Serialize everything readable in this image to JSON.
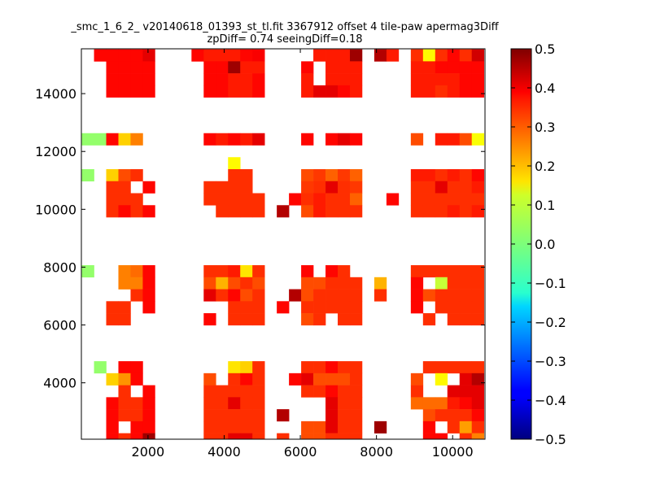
{
  "chart_data": {
    "type": "heatmap",
    "title": "_smc_1_6_2_ v20140618_01393_st_tl.fit 3367912 offset 4 tile-paw apermag3Diff",
    "subtitle": "zpDiff= 0.74 seeingDiff=0.18",
    "xlabel": "",
    "ylabel": "",
    "xlim": [
      250,
      10850
    ],
    "ylim": [
      2050,
      15550
    ],
    "xticks": [
      2000,
      4000,
      6000,
      8000,
      10000
    ],
    "yticks": [
      4000,
      6000,
      8000,
      10000,
      12000,
      14000
    ],
    "colorbar": {
      "colormap": "jet",
      "range": [
        -0.5,
        0.5
      ],
      "ticks": [
        "0.5",
        "0.4",
        "0.3",
        "0.2",
        "0.1",
        "0.0",
        "−0.1",
        "−0.2",
        "−0.3",
        "−0.4",
        "−0.5"
      ]
    },
    "bin_size": {
      "x": 320,
      "y": 415
    },
    "grid": false,
    "columns_x": [
      422,
      742,
      1062,
      1382,
      1702,
      2022,
      3302,
      3622,
      3942,
      4262,
      4582,
      4902,
      5542,
      5862,
      6182,
      6502,
      6822,
      7142,
      7462,
      8102,
      8422,
      9062,
      9382,
      9702,
      10022,
      10342,
      10662
    ],
    "rows_y": [
      15325,
      14910,
      14495,
      14080,
      12425,
      11595,
      11180,
      10765,
      10350,
      9935,
      7860,
      7445,
      7030,
      6615,
      6200,
      4540,
      4125,
      3710,
      3295,
      2880,
      2465,
      2050
    ],
    "cells": [
      [
        null,
        0.37,
        0.37,
        0.37,
        0.37,
        0.4,
        0.37,
        0.35,
        0.35,
        0.35,
        0.37,
        0.38,
        null,
        null,
        null,
        0.35,
        0.35,
        0.35,
        0.47,
        0.45,
        0.35,
        0.33,
        0.13,
        0.33,
        0.37,
        0.33,
        0.42
      ],
      [
        null,
        null,
        0.37,
        0.37,
        0.37,
        0.37,
        null,
        0.37,
        0.37,
        0.47,
        0.35,
        0.35,
        null,
        null,
        0.37,
        null,
        0.35,
        0.35,
        0.35,
        null,
        null,
        0.35,
        0.35,
        0.37,
        0.37,
        0.37,
        0.37
      ],
      [
        null,
        null,
        0.37,
        0.37,
        0.37,
        0.37,
        null,
        0.37,
        0.37,
        0.35,
        0.35,
        0.37,
        null,
        null,
        0.35,
        null,
        0.35,
        0.35,
        0.35,
        null,
        null,
        0.35,
        0.35,
        0.35,
        0.35,
        0.37,
        0.37
      ],
      [
        null,
        null,
        0.37,
        0.37,
        0.37,
        0.37,
        null,
        0.37,
        0.37,
        0.35,
        0.35,
        0.37,
        null,
        null,
        0.35,
        0.4,
        0.4,
        0.37,
        0.35,
        null,
        null,
        0.35,
        0.35,
        0.33,
        0.35,
        0.37,
        0.37
      ],
      [
        0.02,
        0.02,
        0.37,
        0.17,
        0.25,
        null,
        null,
        0.37,
        0.35,
        0.37,
        0.35,
        0.4,
        null,
        null,
        0.37,
        null,
        0.37,
        0.4,
        0.37,
        null,
        null,
        0.3,
        null,
        0.35,
        0.35,
        0.3,
        0.12
      ],
      [
        null,
        null,
        null,
        null,
        null,
        null,
        null,
        null,
        null,
        0.13,
        null,
        null,
        null,
        null,
        null,
        null,
        null,
        null,
        null,
        null,
        null,
        null,
        null,
        null,
        null,
        null,
        null
      ],
      [
        0.02,
        null,
        0.17,
        0.3,
        0.33,
        null,
        null,
        null,
        null,
        0.33,
        0.33,
        null,
        null,
        null,
        0.3,
        0.32,
        0.28,
        0.32,
        0.28,
        null,
        null,
        0.35,
        0.35,
        0.33,
        0.35,
        0.33,
        0.37
      ],
      [
        null,
        null,
        0.33,
        0.33,
        null,
        0.37,
        null,
        0.33,
        0.33,
        0.33,
        0.33,
        null,
        null,
        null,
        0.32,
        0.33,
        0.4,
        0.33,
        0.32,
        null,
        null,
        0.33,
        0.33,
        0.4,
        0.33,
        0.33,
        0.35
      ],
      [
        null,
        null,
        0.33,
        0.33,
        0.33,
        null,
        null,
        0.33,
        0.33,
        0.33,
        0.33,
        0.33,
        null,
        0.37,
        0.33,
        0.35,
        0.33,
        0.33,
        0.28,
        null,
        0.37,
        0.33,
        0.33,
        0.33,
        0.33,
        0.33,
        0.33
      ],
      [
        null,
        null,
        0.33,
        0.37,
        0.33,
        0.37,
        null,
        null,
        0.33,
        0.33,
        0.33,
        0.33,
        0.45,
        null,
        0.3,
        0.35,
        0.33,
        0.33,
        0.33,
        null,
        null,
        0.33,
        0.33,
        0.33,
        0.35,
        0.33,
        0.35
      ],
      [
        0.02,
        null,
        null,
        0.25,
        0.27,
        0.37,
        null,
        0.33,
        0.33,
        0.35,
        0.15,
        0.33,
        null,
        null,
        0.37,
        null,
        0.37,
        0.33,
        null,
        null,
        null,
        0.33,
        0.33,
        0.33,
        0.33,
        0.33,
        0.33
      ],
      [
        null,
        null,
        null,
        0.25,
        0.25,
        0.37,
        null,
        0.3,
        0.2,
        0.3,
        0.33,
        0.3,
        null,
        null,
        0.3,
        0.3,
        0.33,
        0.33,
        0.33,
        0.2,
        null,
        0.37,
        null,
        0.07,
        0.33,
        0.33,
        0.33
      ],
      [
        null,
        null,
        null,
        null,
        0.33,
        0.37,
        null,
        0.4,
        0.33,
        0.37,
        0.3,
        0.33,
        null,
        0.45,
        0.3,
        0.33,
        0.33,
        0.33,
        0.33,
        0.33,
        null,
        0.37,
        0.3,
        0.33,
        0.33,
        0.33,
        0.33
      ],
      [
        null,
        null,
        0.33,
        0.33,
        null,
        0.37,
        null,
        null,
        null,
        0.33,
        0.33,
        0.33,
        0.37,
        null,
        0.33,
        0.33,
        0.33,
        0.33,
        0.33,
        null,
        null,
        0.37,
        null,
        0.33,
        0.33,
        0.33,
        0.33
      ],
      [
        null,
        null,
        0.33,
        0.33,
        null,
        null,
        null,
        0.37,
        null,
        0.33,
        0.33,
        0.33,
        null,
        null,
        0.3,
        0.33,
        null,
        0.33,
        0.33,
        null,
        null,
        null,
        0.33,
        null,
        0.33,
        0.33,
        0.33
      ],
      [
        null,
        0.02,
        null,
        0.37,
        0.37,
        null,
        null,
        null,
        null,
        0.15,
        0.17,
        0.33,
        null,
        null,
        0.33,
        0.33,
        0.37,
        0.33,
        0.33,
        null,
        null,
        null,
        0.33,
        0.33,
        0.33,
        0.33,
        0.33
      ],
      [
        null,
        null,
        0.17,
        0.23,
        0.37,
        null,
        null,
        0.3,
        null,
        0.33,
        0.37,
        0.33,
        null,
        0.37,
        0.4,
        0.3,
        0.3,
        0.3,
        0.33,
        null,
        null,
        0.3,
        null,
        0.13,
        null,
        0.4,
        0.45
      ],
      [
        null,
        null,
        null,
        0.33,
        null,
        0.37,
        null,
        0.33,
        0.33,
        0.33,
        0.33,
        0.33,
        null,
        null,
        0.33,
        0.33,
        0.37,
        0.33,
        0.33,
        null,
        null,
        0.33,
        null,
        null,
        0.4,
        0.4,
        0.4
      ],
      [
        null,
        null,
        0.37,
        0.33,
        0.33,
        0.37,
        null,
        0.33,
        0.33,
        0.4,
        0.33,
        0.33,
        null,
        null,
        null,
        null,
        0.4,
        0.33,
        0.33,
        null,
        null,
        0.27,
        0.27,
        0.27,
        0.35,
        0.37,
        0.4
      ],
      [
        null,
        null,
        0.37,
        0.33,
        0.33,
        0.37,
        null,
        0.33,
        0.33,
        0.33,
        0.33,
        0.33,
        0.45,
        null,
        null,
        null,
        0.4,
        0.33,
        0.33,
        null,
        null,
        null,
        0.3,
        0.33,
        0.33,
        0.33,
        0.37
      ],
      [
        null,
        null,
        0.37,
        null,
        0.37,
        0.37,
        null,
        0.33,
        0.33,
        0.33,
        0.33,
        0.33,
        null,
        null,
        0.3,
        0.3,
        0.4,
        0.33,
        0.33,
        0.47,
        null,
        null,
        0.37,
        null,
        0.33,
        0.22,
        0.33
      ],
      [
        null,
        null,
        0.37,
        0.33,
        0.37,
        0.47,
        null,
        0.33,
        0.33,
        0.4,
        0.4,
        0.33,
        0.33,
        null,
        0.3,
        0.3,
        0.33,
        0.33,
        0.33,
        null,
        null,
        null,
        0.37,
        0.37,
        null,
        0.33,
        0.25
      ]
    ]
  }
}
